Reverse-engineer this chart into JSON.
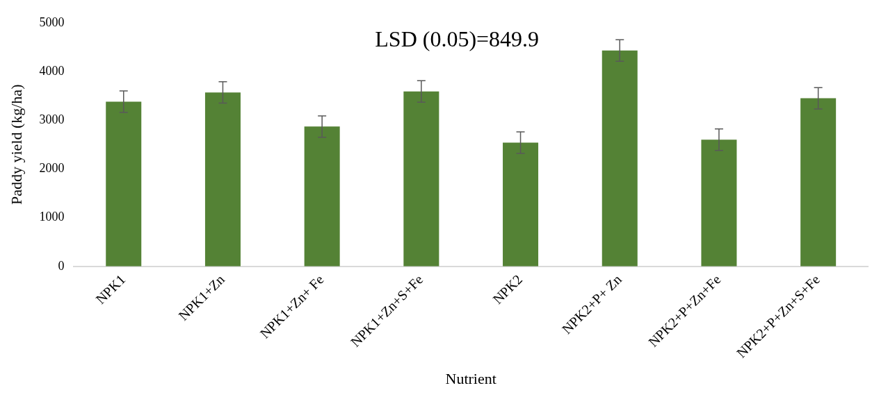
{
  "chart_data": {
    "type": "bar",
    "xlabel": "Nutrient",
    "ylabel": "Paddy yield (kg/ha)",
    "categories": [
      "NPK1",
      "NPK1+Zn",
      "NPK1+Zn+ Fe",
      "NPK1+Zn+S+Fe",
      "NPK2",
      "NPK2+P+ Zn",
      "NPK2+P+Zn+Fe",
      "NPK2+P+Zn+S+Fe"
    ],
    "values": [
      3380,
      3570,
      2870,
      3590,
      2540,
      4430,
      2600,
      3450
    ],
    "errors": [
      220,
      220,
      220,
      220,
      220,
      220,
      220,
      220
    ],
    "color": "#548235",
    "ylim": [
      0,
      5000
    ],
    "yticks": [
      0,
      1000,
      2000,
      3000,
      4000,
      5000
    ],
    "annotations": [
      "LSD (0.05)=849.9"
    ]
  }
}
